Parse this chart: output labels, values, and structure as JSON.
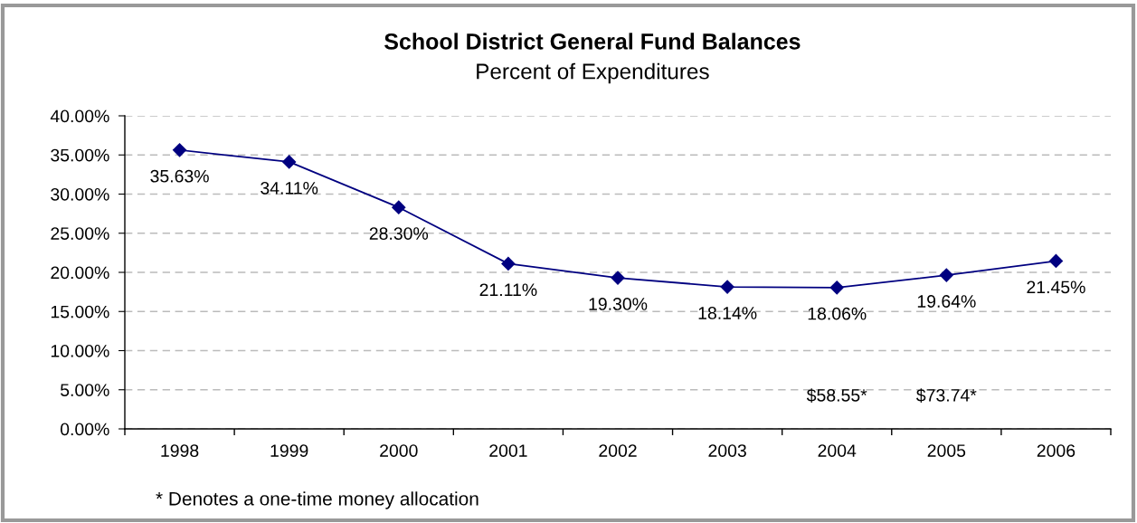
{
  "chart_data": {
    "type": "line",
    "title": "School District General Fund Balances",
    "subtitle": "Percent of Expenditures",
    "categories": [
      "1998",
      "1999",
      "2000",
      "2001",
      "2002",
      "2003",
      "2004",
      "2005",
      "2006"
    ],
    "series": [
      {
        "color": "#000080",
        "values": [
          35.63,
          34.11,
          28.3,
          21.11,
          19.3,
          18.14,
          18.06,
          19.64,
          21.45
        ],
        "value_labels": [
          "35.63%",
          "34.11%",
          "28.30%",
          "21.11%",
          "19.30%",
          "18.14%",
          "18.06%",
          "19.64%",
          "21.45%"
        ]
      }
    ],
    "ylim": [
      0,
      40
    ],
    "yticks": [
      {
        "value": 0,
        "label": "0.00%"
      },
      {
        "value": 5,
        "label": "5.00%"
      },
      {
        "value": 10,
        "label": "10.00%"
      },
      {
        "value": 15,
        "label": "15.00%"
      },
      {
        "value": 20,
        "label": "20.00%"
      },
      {
        "value": 25,
        "label": "25.00%"
      },
      {
        "value": 30,
        "label": "30.00%"
      },
      {
        "value": 35,
        "label": "35.00%"
      },
      {
        "value": 40,
        "label": "40.00%"
      }
    ],
    "grid": "y",
    "marker": "diamond",
    "line_style": "solid",
    "annotations": [
      "$58.55*",
      "$73.74*",
      "* Denotes a one-time money allocation"
    ]
  }
}
